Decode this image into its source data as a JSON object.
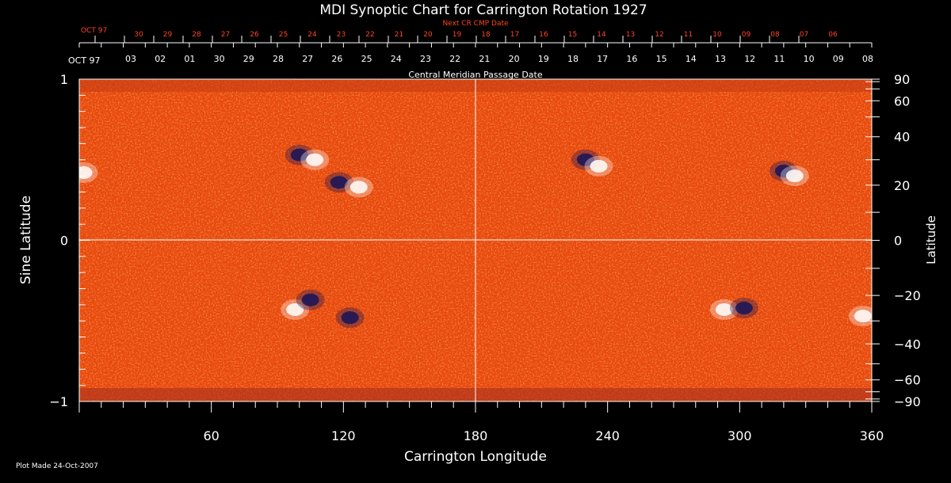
{
  "colors": {
    "background": "#000000",
    "axis": "#ffffff",
    "next_cr": "#ff4422",
    "field_base": "#e8480c",
    "positive": "#ffffff",
    "negative": "#14145a"
  },
  "chart_data": {
    "type": "heatmap",
    "title": "MDI Synoptic Chart for Carrington Rotation 1927",
    "xlabel": "Carrington Longitude",
    "ylabel_left": "Sine Latitude",
    "ylabel_right": "Latitude",
    "xlim": [
      0,
      360
    ],
    "ylim": [
      -1,
      1
    ],
    "x_ticks": [
      "60",
      "120",
      "180",
      "240",
      "300",
      "360"
    ],
    "y_left_ticks": [
      "1",
      "0",
      "−1"
    ],
    "y_right_ticks": [
      "90",
      "60",
      "40",
      "20",
      "0",
      "−20",
      "−40",
      "−60",
      "−90"
    ],
    "cmp_axis_label": "Central Meridian Passage Date",
    "cmp_month": "OCT 97",
    "cmp_dates": [
      "03",
      "02",
      "01",
      "30",
      "29",
      "28",
      "27",
      "26",
      "25",
      "24",
      "23",
      "22",
      "21",
      "20",
      "19",
      "18",
      "17",
      "16",
      "15",
      "14",
      "13",
      "12",
      "11",
      "10",
      "09",
      "08"
    ],
    "next_cr_label": "Next CR CMP Date",
    "next_cr_month": "OCT 97",
    "next_cr_dates": [
      "30",
      "29",
      "28",
      "27",
      "26",
      "25",
      "24",
      "23",
      "22",
      "21",
      "20",
      "19",
      "18",
      "17",
      "16",
      "15",
      "14",
      "13",
      "12",
      "11",
      "10",
      "09",
      "08",
      "07",
      "06"
    ],
    "grid": "meridian at 180 and equator",
    "active_regions": [
      {
        "lon": 2,
        "sinlat": 0.42,
        "polarity": "positive"
      },
      {
        "lon": 100,
        "sinlat": 0.53,
        "polarity": "negative"
      },
      {
        "lon": 107,
        "sinlat": 0.5,
        "polarity": "positive"
      },
      {
        "lon": 118,
        "sinlat": 0.36,
        "polarity": "negative"
      },
      {
        "lon": 127,
        "sinlat": 0.33,
        "polarity": "positive"
      },
      {
        "lon": 230,
        "sinlat": 0.5,
        "polarity": "negative"
      },
      {
        "lon": 236,
        "sinlat": 0.46,
        "polarity": "positive"
      },
      {
        "lon": 320,
        "sinlat": 0.43,
        "polarity": "negative"
      },
      {
        "lon": 325,
        "sinlat": 0.4,
        "polarity": "positive"
      },
      {
        "lon": 98,
        "sinlat": -0.43,
        "polarity": "positive"
      },
      {
        "lon": 105,
        "sinlat": -0.37,
        "polarity": "negative"
      },
      {
        "lon": 123,
        "sinlat": -0.48,
        "polarity": "negative"
      },
      {
        "lon": 293,
        "sinlat": -0.43,
        "polarity": "positive"
      },
      {
        "lon": 302,
        "sinlat": -0.42,
        "polarity": "negative"
      },
      {
        "lon": 356,
        "sinlat": -0.47,
        "polarity": "positive"
      }
    ]
  },
  "footer": {
    "plot_made": "Plot Made 24-Oct-2007"
  }
}
